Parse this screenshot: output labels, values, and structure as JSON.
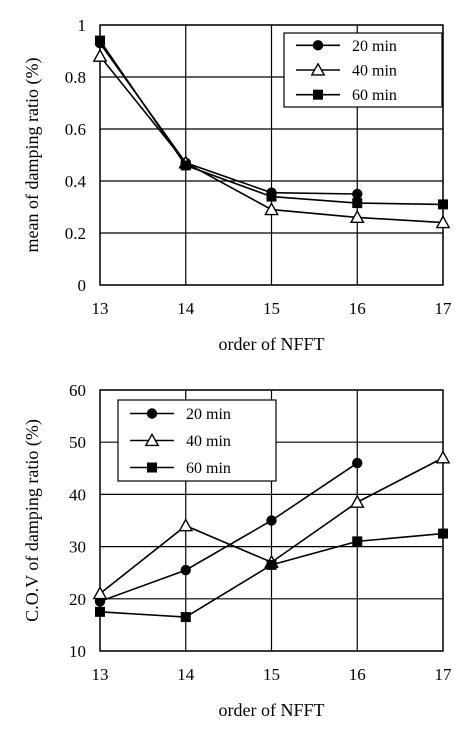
{
  "chart_data": [
    {
      "type": "line",
      "x": [
        13,
        14,
        15,
        16,
        17
      ],
      "xlabel": "order of NFFT",
      "ylabel": "mean of damping ratio (%)",
      "xlim": [
        13,
        17
      ],
      "ylim": [
        0,
        1
      ],
      "x_ticks": [
        "13",
        "14",
        "15",
        "16",
        "17"
      ],
      "y_ticks": [
        "0",
        "0.2",
        "0.4",
        "0.6",
        "0.8",
        "1"
      ],
      "y_tick_values": [
        0,
        0.2,
        0.4,
        0.6,
        0.8,
        1
      ],
      "grid": true,
      "legend": "top-right",
      "series": [
        {
          "name": "20 min",
          "marker": "circle",
          "values": [
            0.93,
            0.47,
            0.355,
            0.35,
            null
          ]
        },
        {
          "name": "40 min",
          "marker": "triangle-open",
          "values": [
            0.88,
            0.47,
            0.29,
            0.26,
            0.24
          ]
        },
        {
          "name": "60 min",
          "marker": "square",
          "values": [
            0.94,
            0.46,
            0.34,
            0.315,
            0.31
          ]
        }
      ]
    },
    {
      "type": "line",
      "x": [
        13,
        14,
        15,
        16,
        17
      ],
      "xlabel": "order of NFFT",
      "ylabel": "C.O.V of damping ratio (%)",
      "xlim": [
        13,
        17
      ],
      "ylim": [
        10,
        60
      ],
      "x_ticks": [
        "13",
        "14",
        "15",
        "16",
        "17"
      ],
      "y_ticks": [
        "10",
        "20",
        "30",
        "40",
        "50",
        "60"
      ],
      "y_tick_values": [
        10,
        20,
        30,
        40,
        50,
        60
      ],
      "grid": true,
      "legend": "top-left",
      "series": [
        {
          "name": "20 min",
          "marker": "circle",
          "values": [
            19.5,
            25.5,
            35,
            46,
            null
          ]
        },
        {
          "name": "40 min",
          "marker": "triangle-open",
          "values": [
            21,
            34,
            27,
            38.5,
            47
          ]
        },
        {
          "name": "60 min",
          "marker": "square",
          "values": [
            17.5,
            16.5,
            26.5,
            31,
            32.5
          ]
        }
      ]
    }
  ]
}
